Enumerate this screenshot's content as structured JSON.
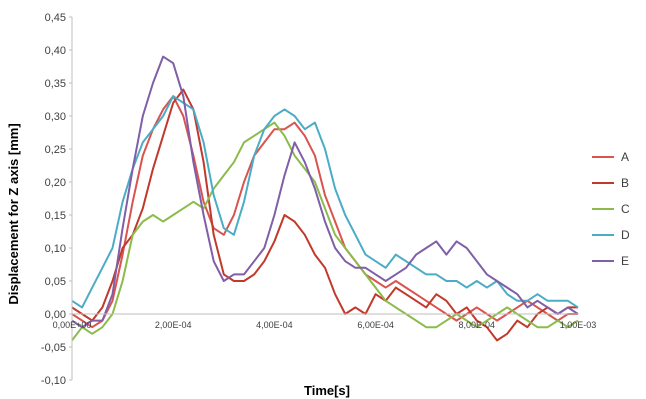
{
  "chart_data": {
    "type": "line",
    "title": "",
    "xlabel": "Time[s]",
    "ylabel": "Displacement for  Z axis [mm]",
    "xlim": [
      0,
      0.001
    ],
    "ylim": [
      -0.1,
      0.45
    ],
    "grid": false,
    "legend_position": "right",
    "y_ticks": [
      -0.1,
      -0.05,
      0.0,
      0.05,
      0.1,
      0.15,
      0.2,
      0.25,
      0.3,
      0.35,
      0.4,
      0.45
    ],
    "y_tick_labels": [
      "-0,10",
      "-0,05",
      "0,00",
      "0,05",
      "0,10",
      "0,15",
      "0,20",
      "0,25",
      "0,30",
      "0,35",
      "0,40",
      "0,45"
    ],
    "x_ticks": [
      0,
      0.0002,
      0.0004,
      0.0006,
      0.0008,
      0.001
    ],
    "x_tick_labels": [
      "0,00E+00",
      "2,00E-04",
      "4,00E-04",
      "6,00E-04",
      "8,00E-04",
      "1,00E-03"
    ],
    "series": [
      {
        "name": "A",
        "color": "#d9534f",
        "x": [
          0,
          2e-05,
          4e-05,
          6e-05,
          8e-05,
          0.0001,
          0.00012,
          0.00014,
          0.00016,
          0.00018,
          0.0002,
          0.00022,
          0.00024,
          0.00026,
          0.00028,
          0.0003,
          0.00032,
          0.00034,
          0.00036,
          0.00038,
          0.0004,
          0.00042,
          0.00044,
          0.00046,
          0.00048,
          0.0005,
          0.00052,
          0.00054,
          0.00056,
          0.00058,
          0.0006,
          0.00062,
          0.00064,
          0.00066,
          0.00068,
          0.0007,
          0.00072,
          0.00074,
          0.00076,
          0.00078,
          0.0008,
          0.00082,
          0.00084,
          0.00086,
          0.00088,
          0.0009,
          0.00092,
          0.00094,
          0.00096,
          0.00098,
          0.001
        ],
        "values": [
          0.0,
          -0.01,
          -0.02,
          -0.01,
          0.02,
          0.09,
          0.17,
          0.24,
          0.28,
          0.31,
          0.33,
          0.3,
          0.24,
          0.17,
          0.13,
          0.12,
          0.15,
          0.2,
          0.24,
          0.26,
          0.28,
          0.28,
          0.29,
          0.27,
          0.24,
          0.18,
          0.14,
          0.1,
          0.08,
          0.06,
          0.05,
          0.04,
          0.05,
          0.04,
          0.03,
          0.02,
          0.01,
          0.0,
          -0.01,
          0.0,
          0.01,
          0.0,
          -0.01,
          0.0,
          0.01,
          0.02,
          0.01,
          0.0,
          -0.01,
          0.0,
          0.0
        ]
      },
      {
        "name": "B",
        "color": "#c0392b",
        "x": [
          0,
          2e-05,
          4e-05,
          6e-05,
          8e-05,
          0.0001,
          0.00012,
          0.00014,
          0.00016,
          0.00018,
          0.0002,
          0.00022,
          0.00024,
          0.00026,
          0.00028,
          0.0003,
          0.00032,
          0.00034,
          0.00036,
          0.00038,
          0.0004,
          0.00042,
          0.00044,
          0.00046,
          0.00048,
          0.0005,
          0.00052,
          0.00054,
          0.00056,
          0.00058,
          0.0006,
          0.00062,
          0.00064,
          0.00066,
          0.00068,
          0.0007,
          0.00072,
          0.00074,
          0.00076,
          0.00078,
          0.0008,
          0.00082,
          0.00084,
          0.00086,
          0.00088,
          0.0009,
          0.00092,
          0.00094,
          0.00096,
          0.00098,
          0.001
        ],
        "values": [
          0.01,
          0.0,
          -0.01,
          0.01,
          0.05,
          0.1,
          0.12,
          0.16,
          0.22,
          0.27,
          0.32,
          0.34,
          0.31,
          0.23,
          0.12,
          0.06,
          0.05,
          0.05,
          0.06,
          0.08,
          0.11,
          0.15,
          0.14,
          0.12,
          0.09,
          0.07,
          0.03,
          0.0,
          0.01,
          0.0,
          0.03,
          0.02,
          0.04,
          0.03,
          0.02,
          0.01,
          0.03,
          0.02,
          0.0,
          0.01,
          -0.01,
          -0.02,
          -0.04,
          -0.03,
          -0.01,
          -0.02,
          0.0,
          0.01,
          0.0,
          0.01,
          0.01
        ]
      },
      {
        "name": "C",
        "color": "#8bbb4b",
        "x": [
          0,
          2e-05,
          4e-05,
          6e-05,
          8e-05,
          0.0001,
          0.00012,
          0.00014,
          0.00016,
          0.00018,
          0.0002,
          0.00022,
          0.00024,
          0.00026,
          0.00028,
          0.0003,
          0.00032,
          0.00034,
          0.00036,
          0.00038,
          0.0004,
          0.00042,
          0.00044,
          0.00046,
          0.00048,
          0.0005,
          0.00052,
          0.00054,
          0.00056,
          0.00058,
          0.0006,
          0.00062,
          0.00064,
          0.00066,
          0.00068,
          0.0007,
          0.00072,
          0.00074,
          0.00076,
          0.00078,
          0.0008,
          0.00082,
          0.00084,
          0.00086,
          0.00088,
          0.0009,
          0.00092,
          0.00094,
          0.00096,
          0.00098,
          0.001
        ],
        "values": [
          -0.04,
          -0.02,
          -0.03,
          -0.02,
          0.0,
          0.05,
          0.12,
          0.14,
          0.15,
          0.14,
          0.15,
          0.16,
          0.17,
          0.16,
          0.19,
          0.21,
          0.23,
          0.26,
          0.27,
          0.28,
          0.29,
          0.27,
          0.24,
          0.22,
          0.2,
          0.16,
          0.12,
          0.1,
          0.08,
          0.06,
          0.04,
          0.02,
          0.01,
          0.0,
          -0.01,
          -0.02,
          -0.02,
          -0.01,
          0.0,
          -0.01,
          -0.02,
          -0.01,
          0.0,
          0.01,
          0.0,
          -0.01,
          -0.02,
          -0.02,
          -0.01,
          -0.02,
          -0.01
        ]
      },
      {
        "name": "D",
        "color": "#4bacc6",
        "x": [
          0,
          2e-05,
          4e-05,
          6e-05,
          8e-05,
          0.0001,
          0.00012,
          0.00014,
          0.00016,
          0.00018,
          0.0002,
          0.00022,
          0.00024,
          0.00026,
          0.00028,
          0.0003,
          0.00032,
          0.00034,
          0.00036,
          0.00038,
          0.0004,
          0.00042,
          0.00044,
          0.00046,
          0.00048,
          0.0005,
          0.00052,
          0.00054,
          0.00056,
          0.00058,
          0.0006,
          0.00062,
          0.00064,
          0.00066,
          0.00068,
          0.0007,
          0.00072,
          0.00074,
          0.00076,
          0.00078,
          0.0008,
          0.00082,
          0.00084,
          0.00086,
          0.00088,
          0.0009,
          0.00092,
          0.00094,
          0.00096,
          0.00098,
          0.001
        ],
        "values": [
          0.02,
          0.01,
          0.04,
          0.07,
          0.1,
          0.17,
          0.22,
          0.26,
          0.28,
          0.3,
          0.33,
          0.32,
          0.31,
          0.26,
          0.18,
          0.13,
          0.12,
          0.17,
          0.24,
          0.28,
          0.3,
          0.31,
          0.3,
          0.28,
          0.29,
          0.25,
          0.19,
          0.15,
          0.12,
          0.09,
          0.08,
          0.07,
          0.09,
          0.08,
          0.07,
          0.06,
          0.06,
          0.05,
          0.05,
          0.04,
          0.05,
          0.04,
          0.05,
          0.03,
          0.02,
          0.02,
          0.03,
          0.02,
          0.02,
          0.02,
          0.01
        ]
      },
      {
        "name": "E",
        "color": "#7f5fa8",
        "x": [
          0,
          2e-05,
          4e-05,
          6e-05,
          8e-05,
          0.0001,
          0.00012,
          0.00014,
          0.00016,
          0.00018,
          0.0002,
          0.00022,
          0.00024,
          0.00026,
          0.00028,
          0.0003,
          0.00032,
          0.00034,
          0.00036,
          0.00038,
          0.0004,
          0.00042,
          0.00044,
          0.00046,
          0.00048,
          0.0005,
          0.00052,
          0.00054,
          0.00056,
          0.00058,
          0.0006,
          0.00062,
          0.00064,
          0.00066,
          0.00068,
          0.0007,
          0.00072,
          0.00074,
          0.00076,
          0.00078,
          0.0008,
          0.00082,
          0.00084,
          0.00086,
          0.00088,
          0.0009,
          0.00092,
          0.00094,
          0.00096,
          0.00098,
          0.001
        ],
        "values": [
          -0.01,
          -0.02,
          -0.01,
          -0.01,
          0.03,
          0.13,
          0.22,
          0.3,
          0.35,
          0.39,
          0.38,
          0.33,
          0.23,
          0.15,
          0.08,
          0.05,
          0.06,
          0.06,
          0.08,
          0.1,
          0.15,
          0.21,
          0.26,
          0.23,
          0.19,
          0.14,
          0.1,
          0.08,
          0.07,
          0.07,
          0.06,
          0.05,
          0.06,
          0.07,
          0.09,
          0.1,
          0.11,
          0.09,
          0.11,
          0.1,
          0.08,
          0.06,
          0.05,
          0.04,
          0.03,
          0.01,
          0.02,
          0.01,
          0.0,
          0.01,
          0.0
        ]
      }
    ]
  }
}
